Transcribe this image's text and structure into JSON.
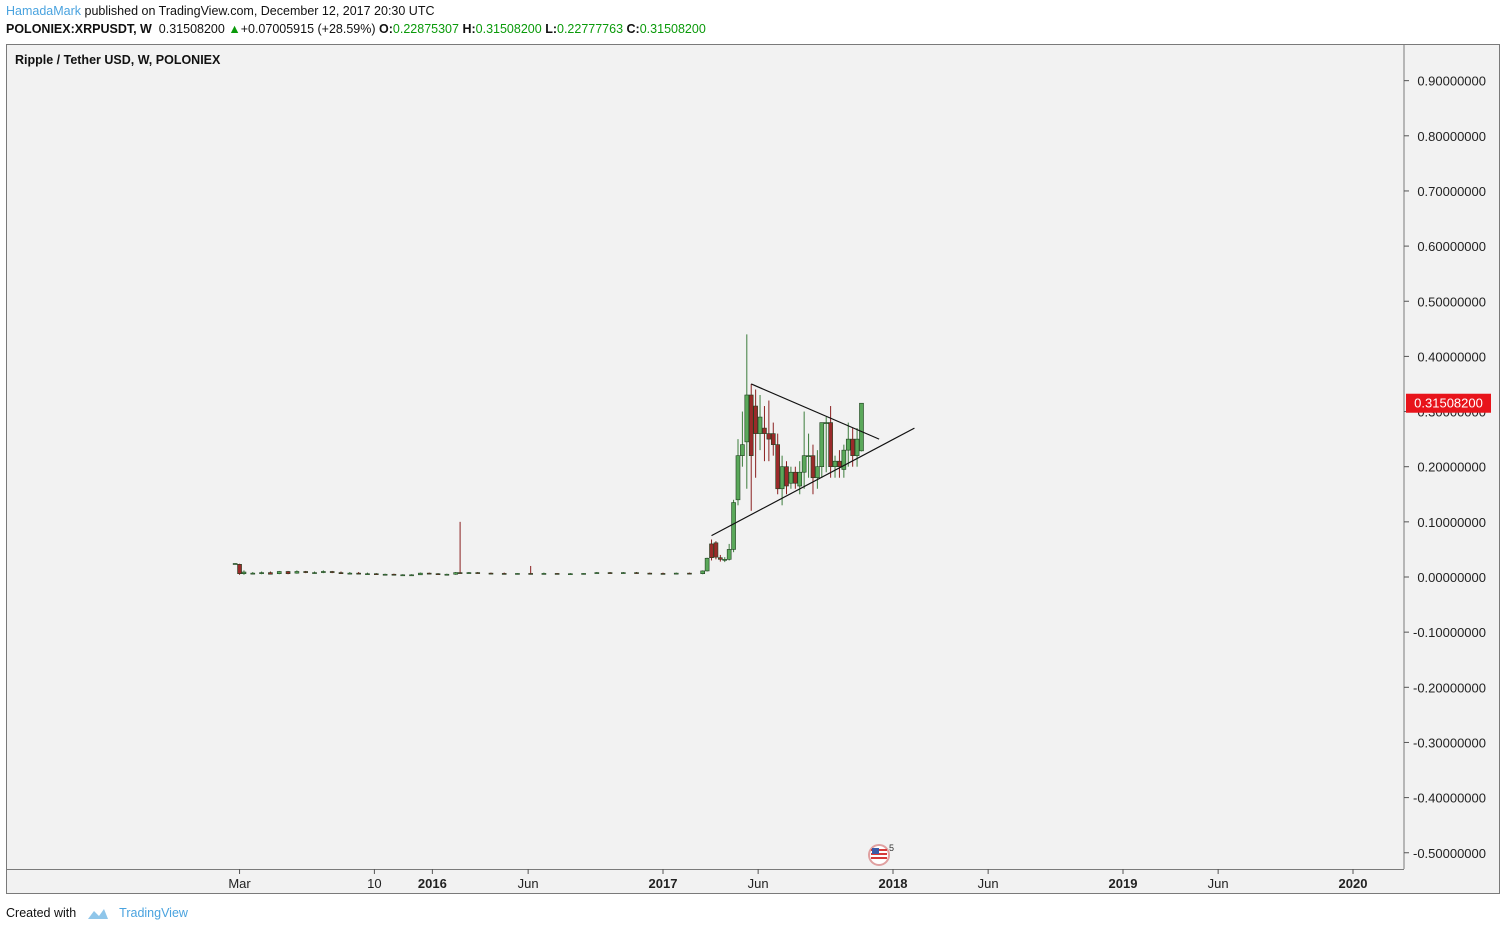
{
  "header": {
    "author": "HamadaMark",
    "published_text": "published on TradingView.com, December 12, 2017 20:30 UTC",
    "symbol": "POLONIEX:XRPUSDT, W",
    "last": "0.31508200",
    "change": "+0.07005915 (+28.59%)",
    "open_label": "O:",
    "open": "0.22875307",
    "high_label": "H:",
    "high": "0.31508200",
    "low_label": "L:",
    "low": "0.22777763",
    "close_label": "C:",
    "close": "0.31508200"
  },
  "chart_title": "Ripple / Tether USD, W, POLONIEX",
  "footer": {
    "created_with": "Created with",
    "brand": "TradingView"
  },
  "colors": {
    "up": "#3c7d3c",
    "down": "#8b2020",
    "price_badge": "#e8141b",
    "author": "#4aa3df",
    "positive": "#0a9a0a"
  },
  "events_badge": "5",
  "chart_data": {
    "type": "candlestick",
    "title": "Ripple / Tether USD, W, POLONIEX",
    "x_tick_labels": [
      "Mar",
      "10",
      "2016",
      "Jun",
      "2017",
      "Jun",
      "2018",
      "Jun",
      "2019",
      "Jun",
      "2020"
    ],
    "x_tick_dates": [
      "2015-03-01",
      "2015-10-01",
      "2016-01-01",
      "2016-06-01",
      "2017-01-01",
      "2017-06-01",
      "2018-01-01",
      "2018-06-01",
      "2019-01-01",
      "2019-06-01",
      "2020-01-01"
    ],
    "bold_ticks": [
      "2016",
      "2017",
      "2018",
      "2019",
      "2020"
    ],
    "y_ticks": [
      0.9,
      0.8,
      0.7,
      0.6,
      0.5,
      0.4,
      0.3,
      0.2,
      0.1,
      0.0,
      -0.1,
      -0.2,
      -0.3,
      -0.4,
      -0.5
    ],
    "y_tick_labels": [
      "0.90000000",
      "0.80000000",
      "0.70000000",
      "0.60000000",
      "0.50000000",
      "0.40000000",
      "0.30000000",
      "0.20000000",
      "0.10000000",
      "0.00000000",
      "-0.10000000",
      "-0.20000000",
      "-0.30000000",
      "-0.40000000",
      "-0.50000000"
    ],
    "ylim": [
      -0.5,
      0.9
    ],
    "last_price": 0.315082,
    "last_price_label": "0.31508200",
    "grid": false,
    "candles": [
      {
        "date": "2015-02-22",
        "o": 0.024,
        "h": 0.025,
        "l": 0.023,
        "c": 0.0245
      },
      {
        "date": "2015-03-01",
        "o": 0.023,
        "h": 0.024,
        "l": 0.004,
        "c": 0.006
      },
      {
        "date": "2015-03-08",
        "o": 0.006,
        "h": 0.012,
        "l": 0.004,
        "c": 0.009
      },
      {
        "date": "2015-03-22",
        "o": 0.006,
        "h": 0.009,
        "l": 0.005,
        "c": 0.007
      },
      {
        "date": "2015-04-05",
        "o": 0.006,
        "h": 0.01,
        "l": 0.005,
        "c": 0.008
      },
      {
        "date": "2015-04-19",
        "o": 0.008,
        "h": 0.01,
        "l": 0.005,
        "c": 0.005
      },
      {
        "date": "2015-05-03",
        "o": 0.006,
        "h": 0.011,
        "l": 0.005,
        "c": 0.01
      },
      {
        "date": "2015-05-17",
        "o": 0.01,
        "h": 0.011,
        "l": 0.005,
        "c": 0.006
      },
      {
        "date": "2015-05-31",
        "o": 0.007,
        "h": 0.012,
        "l": 0.006,
        "c": 0.01
      },
      {
        "date": "2015-06-14",
        "o": 0.01,
        "h": 0.011,
        "l": 0.007,
        "c": 0.008
      },
      {
        "date": "2015-06-28",
        "o": 0.008,
        "h": 0.01,
        "l": 0.006,
        "c": 0.008
      },
      {
        "date": "2015-07-12",
        "o": 0.008,
        "h": 0.012,
        "l": 0.007,
        "c": 0.01
      },
      {
        "date": "2015-07-26",
        "o": 0.01,
        "h": 0.011,
        "l": 0.007,
        "c": 0.008
      },
      {
        "date": "2015-08-09",
        "o": 0.008,
        "h": 0.01,
        "l": 0.006,
        "c": 0.006
      },
      {
        "date": "2015-08-23",
        "o": 0.006,
        "h": 0.009,
        "l": 0.005,
        "c": 0.007
      },
      {
        "date": "2015-09-06",
        "o": 0.007,
        "h": 0.009,
        "l": 0.006,
        "c": 0.006
      },
      {
        "date": "2015-09-20",
        "o": 0.006,
        "h": 0.008,
        "l": 0.005,
        "c": 0.006
      },
      {
        "date": "2015-10-04",
        "o": 0.006,
        "h": 0.007,
        "l": 0.005,
        "c": 0.005
      },
      {
        "date": "2015-10-18",
        "o": 0.005,
        "h": 0.006,
        "l": 0.004,
        "c": 0.005
      },
      {
        "date": "2015-11-01",
        "o": 0.005,
        "h": 0.006,
        "l": 0.003,
        "c": 0.004
      },
      {
        "date": "2015-11-15",
        "o": 0.004,
        "h": 0.005,
        "l": 0.003,
        "c": 0.004
      },
      {
        "date": "2015-11-29",
        "o": 0.004,
        "h": 0.005,
        "l": 0.003,
        "c": 0.004
      },
      {
        "date": "2015-12-13",
        "o": 0.004,
        "h": 0.008,
        "l": 0.004,
        "c": 0.007
      },
      {
        "date": "2015-12-27",
        "o": 0.007,
        "h": 0.008,
        "l": 0.005,
        "c": 0.006
      },
      {
        "date": "2016-01-10",
        "o": 0.006,
        "h": 0.007,
        "l": 0.004,
        "c": 0.005
      },
      {
        "date": "2016-01-24",
        "o": 0.005,
        "h": 0.006,
        "l": 0.004,
        "c": 0.005
      },
      {
        "date": "2016-02-07",
        "o": 0.005,
        "h": 0.009,
        "l": 0.004,
        "c": 0.008
      },
      {
        "date": "2016-02-14",
        "o": 0.008,
        "h": 0.1,
        "l": 0.006,
        "c": 0.007
      },
      {
        "date": "2016-02-28",
        "o": 0.007,
        "h": 0.009,
        "l": 0.006,
        "c": 0.008
      },
      {
        "date": "2016-03-13",
        "o": 0.008,
        "h": 0.009,
        "l": 0.006,
        "c": 0.007
      },
      {
        "date": "2016-04-03",
        "o": 0.007,
        "h": 0.008,
        "l": 0.006,
        "c": 0.0065
      },
      {
        "date": "2016-04-24",
        "o": 0.0065,
        "h": 0.008,
        "l": 0.005,
        "c": 0.006
      },
      {
        "date": "2016-05-15",
        "o": 0.006,
        "h": 0.007,
        "l": 0.005,
        "c": 0.0065
      },
      {
        "date": "2016-06-05",
        "o": 0.0065,
        "h": 0.02,
        "l": 0.005,
        "c": 0.006
      },
      {
        "date": "2016-06-26",
        "o": 0.006,
        "h": 0.008,
        "l": 0.005,
        "c": 0.0065
      },
      {
        "date": "2016-07-17",
        "o": 0.0065,
        "h": 0.007,
        "l": 0.005,
        "c": 0.006
      },
      {
        "date": "2016-08-07",
        "o": 0.006,
        "h": 0.007,
        "l": 0.005,
        "c": 0.006
      },
      {
        "date": "2016-08-28",
        "o": 0.006,
        "h": 0.007,
        "l": 0.005,
        "c": 0.0065
      },
      {
        "date": "2016-09-18",
        "o": 0.0065,
        "h": 0.009,
        "l": 0.006,
        "c": 0.008
      },
      {
        "date": "2016-10-09",
        "o": 0.008,
        "h": 0.009,
        "l": 0.006,
        "c": 0.007
      },
      {
        "date": "2016-10-30",
        "o": 0.007,
        "h": 0.009,
        "l": 0.006,
        "c": 0.008
      },
      {
        "date": "2016-11-20",
        "o": 0.008,
        "h": 0.009,
        "l": 0.006,
        "c": 0.007
      },
      {
        "date": "2016-12-11",
        "o": 0.007,
        "h": 0.008,
        "l": 0.006,
        "c": 0.0065
      },
      {
        "date": "2017-01-01",
        "o": 0.0065,
        "h": 0.008,
        "l": 0.005,
        "c": 0.006
      },
      {
        "date": "2017-01-22",
        "o": 0.006,
        "h": 0.008,
        "l": 0.005,
        "c": 0.007
      },
      {
        "date": "2017-02-12",
        "o": 0.007,
        "h": 0.008,
        "l": 0.006,
        "c": 0.006
      },
      {
        "date": "2017-03-05",
        "o": 0.006,
        "h": 0.012,
        "l": 0.005,
        "c": 0.011
      },
      {
        "date": "2017-03-12",
        "o": 0.011,
        "h": 0.035,
        "l": 0.01,
        "c": 0.034
      },
      {
        "date": "2017-03-19",
        "o": 0.06,
        "h": 0.068,
        "l": 0.03,
        "c": 0.035
      },
      {
        "date": "2017-03-26",
        "o": 0.062,
        "h": 0.065,
        "l": 0.032,
        "c": 0.036
      },
      {
        "date": "2017-04-02",
        "o": 0.035,
        "h": 0.04,
        "l": 0.028,
        "c": 0.032
      },
      {
        "date": "2017-04-09",
        "o": 0.031,
        "h": 0.036,
        "l": 0.027,
        "c": 0.032
      },
      {
        "date": "2017-04-16",
        "o": 0.032,
        "h": 0.06,
        "l": 0.03,
        "c": 0.05
      },
      {
        "date": "2017-04-23",
        "o": 0.05,
        "h": 0.14,
        "l": 0.045,
        "c": 0.135
      },
      {
        "date": "2017-04-30",
        "o": 0.14,
        "h": 0.25,
        "l": 0.13,
        "c": 0.22
      },
      {
        "date": "2017-05-07",
        "o": 0.22,
        "h": 0.3,
        "l": 0.2,
        "c": 0.24
      },
      {
        "date": "2017-05-14",
        "o": 0.245,
        "h": 0.44,
        "l": 0.16,
        "c": 0.33
      },
      {
        "date": "2017-05-21",
        "o": 0.33,
        "h": 0.35,
        "l": 0.12,
        "c": 0.22
      },
      {
        "date": "2017-05-28",
        "o": 0.31,
        "h": 0.34,
        "l": 0.18,
        "c": 0.26
      },
      {
        "date": "2017-06-04",
        "o": 0.26,
        "h": 0.33,
        "l": 0.23,
        "c": 0.29
      },
      {
        "date": "2017-06-11",
        "o": 0.27,
        "h": 0.31,
        "l": 0.21,
        "c": 0.26
      },
      {
        "date": "2017-06-18",
        "o": 0.26,
        "h": 0.32,
        "l": 0.21,
        "c": 0.25
      },
      {
        "date": "2017-06-25",
        "o": 0.26,
        "h": 0.28,
        "l": 0.22,
        "c": 0.24
      },
      {
        "date": "2017-07-02",
        "o": 0.24,
        "h": 0.26,
        "l": 0.15,
        "c": 0.16
      },
      {
        "date": "2017-07-09",
        "o": 0.16,
        "h": 0.22,
        "l": 0.13,
        "c": 0.2
      },
      {
        "date": "2017-07-16",
        "o": 0.2,
        "h": 0.21,
        "l": 0.15,
        "c": 0.165
      },
      {
        "date": "2017-07-23",
        "o": 0.17,
        "h": 0.2,
        "l": 0.16,
        "c": 0.19
      },
      {
        "date": "2017-07-30",
        "o": 0.19,
        "h": 0.2,
        "l": 0.16,
        "c": 0.17
      },
      {
        "date": "2017-08-06",
        "o": 0.165,
        "h": 0.21,
        "l": 0.15,
        "c": 0.19
      },
      {
        "date": "2017-08-13",
        "o": 0.19,
        "h": 0.3,
        "l": 0.16,
        "c": 0.22
      },
      {
        "date": "2017-08-20",
        "o": 0.22,
        "h": 0.26,
        "l": 0.18,
        "c": 0.22
      },
      {
        "date": "2017-08-27",
        "o": 0.22,
        "h": 0.24,
        "l": 0.15,
        "c": 0.18
      },
      {
        "date": "2017-09-03",
        "o": 0.18,
        "h": 0.23,
        "l": 0.16,
        "c": 0.2
      },
      {
        "date": "2017-09-10",
        "o": 0.2,
        "h": 0.28,
        "l": 0.18,
        "c": 0.28
      },
      {
        "date": "2017-09-17",
        "o": 0.28,
        "h": 0.29,
        "l": 0.19,
        "c": 0.28
      },
      {
        "date": "2017-09-24",
        "o": 0.28,
        "h": 0.31,
        "l": 0.18,
        "c": 0.2
      },
      {
        "date": "2017-10-01",
        "o": 0.2,
        "h": 0.22,
        "l": 0.18,
        "c": 0.21
      },
      {
        "date": "2017-10-08",
        "o": 0.21,
        "h": 0.23,
        "l": 0.18,
        "c": 0.2
      },
      {
        "date": "2017-10-15",
        "o": 0.195,
        "h": 0.24,
        "l": 0.18,
        "c": 0.23
      },
      {
        "date": "2017-10-22",
        "o": 0.23,
        "h": 0.28,
        "l": 0.2,
        "c": 0.25
      },
      {
        "date": "2017-10-29",
        "o": 0.25,
        "h": 0.27,
        "l": 0.2,
        "c": 0.22
      },
      {
        "date": "2017-11-05",
        "o": 0.22,
        "h": 0.27,
        "l": 0.2,
        "c": 0.25
      },
      {
        "date": "2017-11-12",
        "o": 0.22875307,
        "h": 0.315082,
        "l": 0.22777763,
        "c": 0.315082
      }
    ],
    "trendlines": [
      {
        "from": {
          "date": "2017-05-21",
          "price": 0.35
        },
        "to": {
          "date": "2017-12-10",
          "price": 0.25
        }
      },
      {
        "from": {
          "date": "2017-03-19",
          "price": 0.075
        },
        "to": {
          "date": "2018-02-04",
          "price": 0.27
        }
      }
    ]
  }
}
